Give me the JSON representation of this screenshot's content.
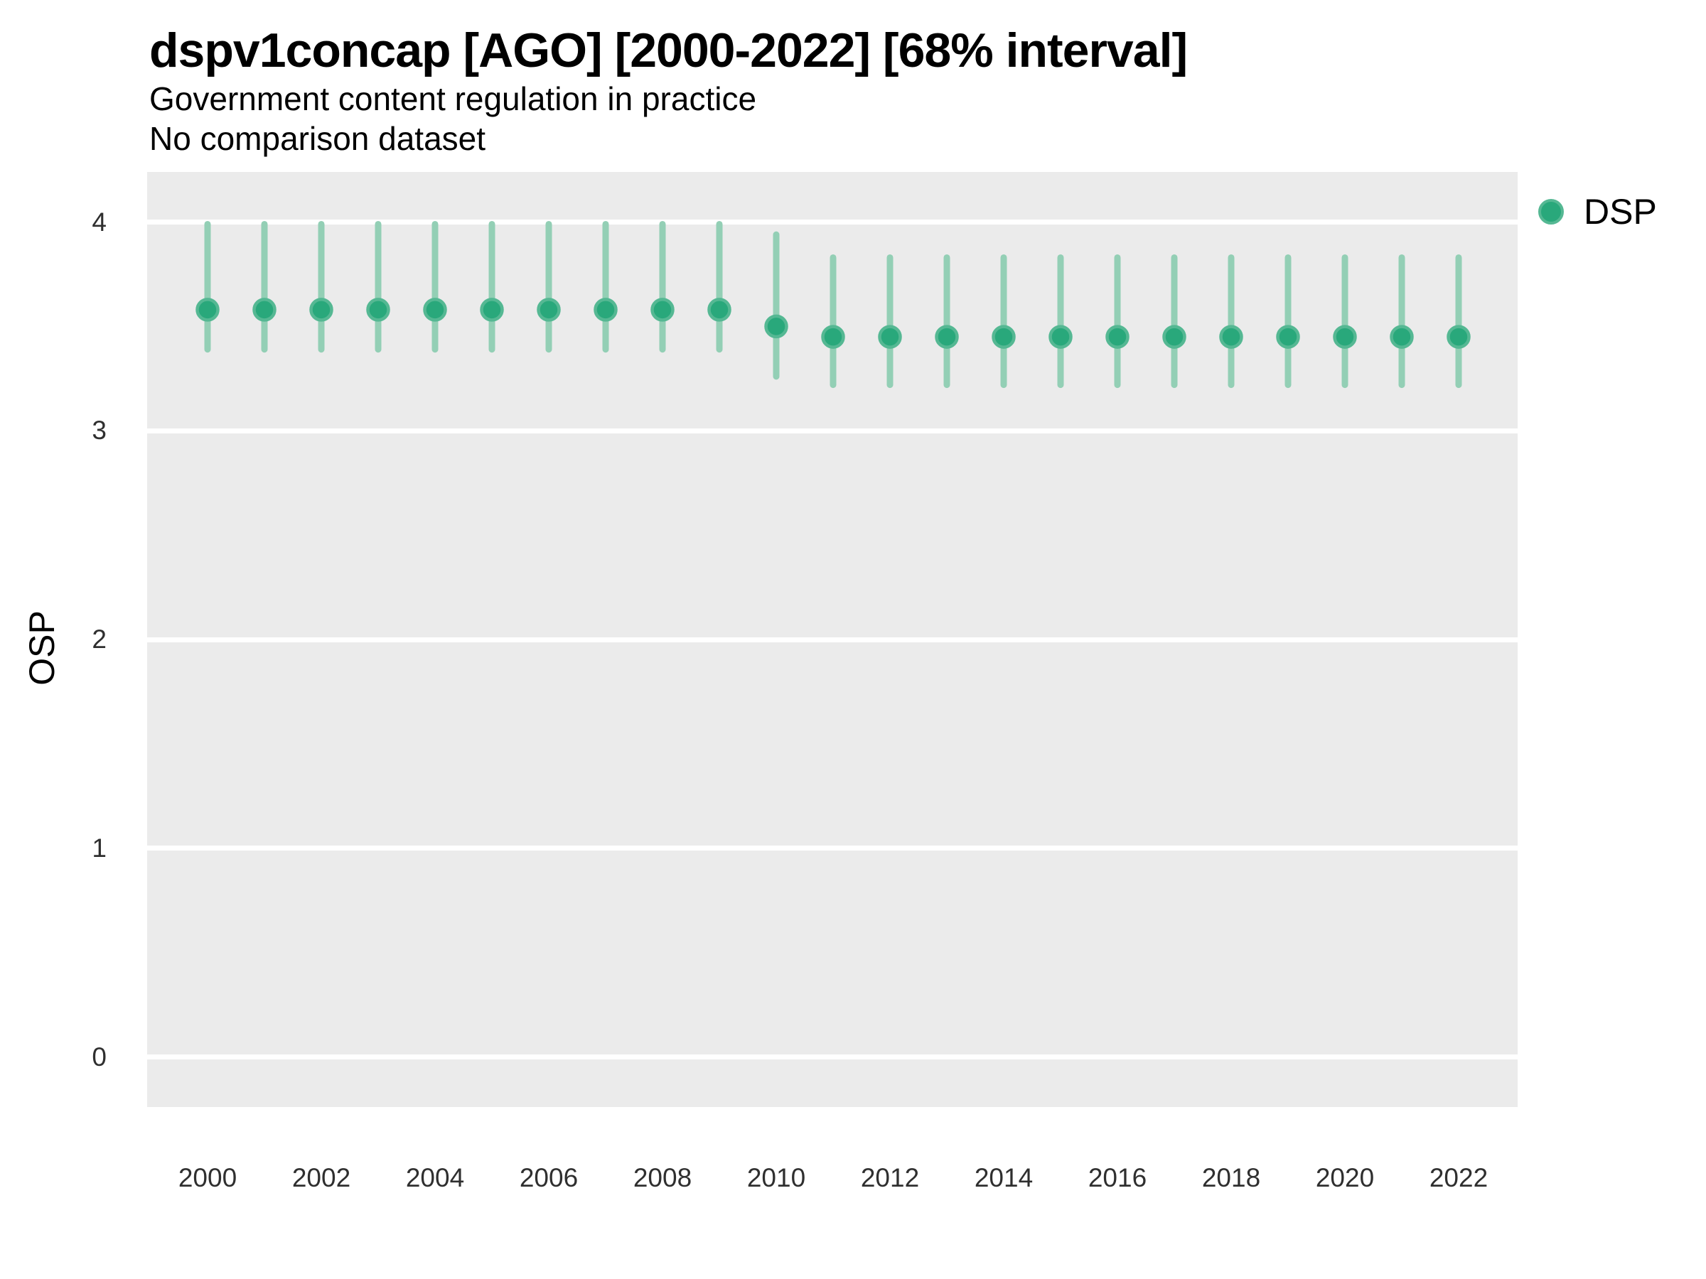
{
  "header": {
    "title": "dspv1concap [AGO] [2000-2022] [68% interval]",
    "subtitle": "Government content regulation in practice",
    "note": "No comparison dataset"
  },
  "axes": {
    "y_label": "OSP",
    "y_ticks": [
      "4",
      "3",
      "2",
      "1",
      "0"
    ],
    "x_ticks": [
      "2000",
      "2002",
      "2004",
      "2006",
      "2008",
      "2010",
      "2012",
      "2014",
      "2016",
      "2018",
      "2020",
      "2022"
    ]
  },
  "legend": {
    "position": "right",
    "items": [
      {
        "label": "DSP",
        "color": "#29a87b"
      }
    ]
  },
  "colors": {
    "plot_background": "#ebebeb",
    "gridline": "#ffffff",
    "interval_bar": "#93cfb5",
    "point_fill": "#29a87b",
    "point_ring": "#55b893",
    "title_text": "#000000",
    "tick_text": "#2f2f2f"
  },
  "chart_data": {
    "type": "scatter",
    "subtype": "pointrange",
    "title": "dspv1concap [AGO] [2000-2022] [68% interval]",
    "subtitle": "Government content regulation in practice",
    "note": "No comparison dataset",
    "interval": "68%",
    "xlabel": "",
    "ylabel": "OSP",
    "ylim": [
      -0.24,
      4.24
    ],
    "y_gridlines": [
      4,
      3,
      2,
      1,
      0
    ],
    "grid": "major-horizontal-white-on-gray",
    "legend_position": "right",
    "x": [
      2000,
      2001,
      2002,
      2003,
      2004,
      2005,
      2006,
      2007,
      2008,
      2009,
      2010,
      2011,
      2012,
      2013,
      2014,
      2015,
      2016,
      2017,
      2018,
      2019,
      2020,
      2021,
      2022
    ],
    "series": [
      {
        "name": "DSP",
        "values": [
          3.58,
          3.58,
          3.58,
          3.58,
          3.58,
          3.58,
          3.58,
          3.58,
          3.58,
          3.58,
          3.5,
          3.45,
          3.45,
          3.45,
          3.45,
          3.45,
          3.45,
          3.45,
          3.45,
          3.45,
          3.45,
          3.45,
          3.45
        ],
        "lower": [
          3.39,
          3.39,
          3.39,
          3.39,
          3.39,
          3.39,
          3.39,
          3.39,
          3.39,
          3.39,
          3.26,
          3.22,
          3.22,
          3.22,
          3.22,
          3.22,
          3.22,
          3.22,
          3.22,
          3.22,
          3.22,
          3.22,
          3.22
        ],
        "upper": [
          3.99,
          3.99,
          3.99,
          3.99,
          3.99,
          3.99,
          3.99,
          3.99,
          3.99,
          3.99,
          3.94,
          3.83,
          3.83,
          3.83,
          3.83,
          3.83,
          3.83,
          3.83,
          3.83,
          3.83,
          3.83,
          3.83,
          3.83
        ]
      }
    ]
  }
}
